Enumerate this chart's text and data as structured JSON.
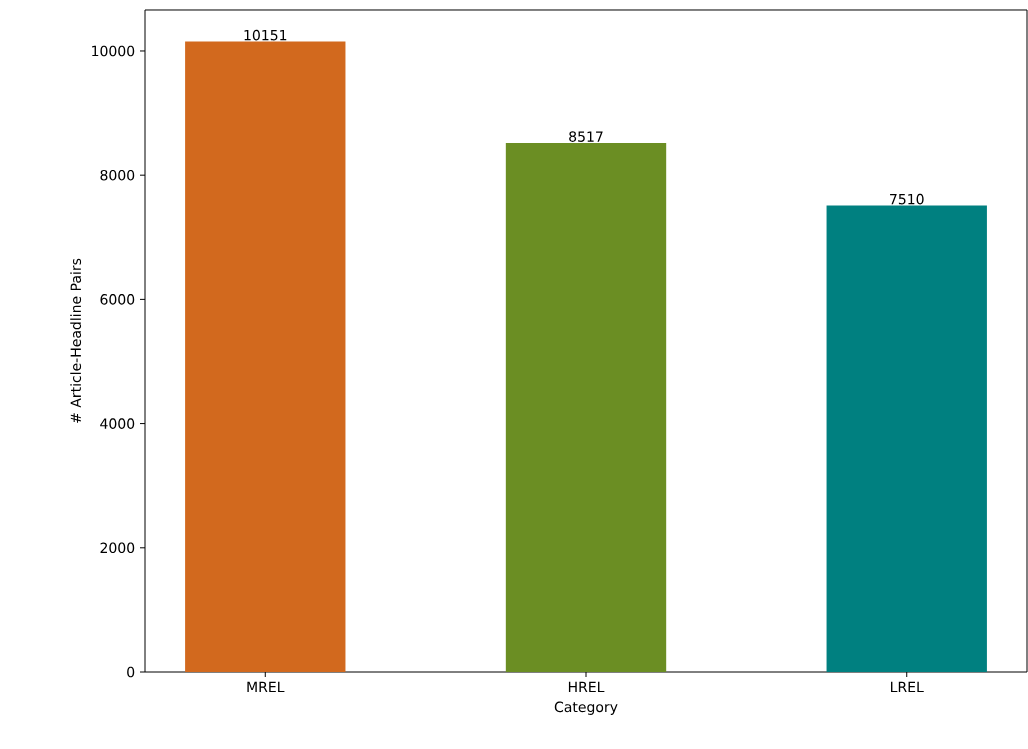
{
  "chart_data": {
    "type": "bar",
    "xlabel": "Category",
    "ylabel": "# Article-Headline Pairs",
    "categories": [
      "MREL",
      "HREL",
      "LREL"
    ],
    "values": [
      10151,
      8517,
      7510
    ],
    "colors": [
      "#d2691e",
      "#6b8e23",
      "#008080"
    ],
    "ylim": [
      0,
      10660
    ],
    "yticks": [
      0,
      2000,
      4000,
      6000,
      8000,
      10000
    ],
    "data_labels": true
  }
}
